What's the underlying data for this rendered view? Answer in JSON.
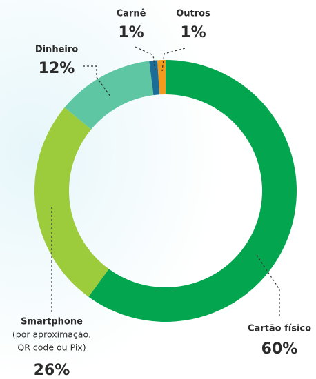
{
  "chart_data": {
    "type": "donut",
    "categories": [
      "Cartão físico",
      "Smartphone",
      "Dinheiro",
      "Carnê",
      "Outros"
    ],
    "category_details": [
      [],
      [
        "(por aproximação,",
        "QR code ou Pix)"
      ],
      [],
      [],
      []
    ],
    "values": [
      60,
      26,
      12,
      1,
      1
    ],
    "value_labels": [
      "60%",
      "26%",
      "12%",
      "1%",
      "1%"
    ],
    "colors": [
      "#03a64e",
      "#9ccb3c",
      "#5ec6a3",
      "#1b6d98",
      "#f29a1e"
    ]
  }
}
